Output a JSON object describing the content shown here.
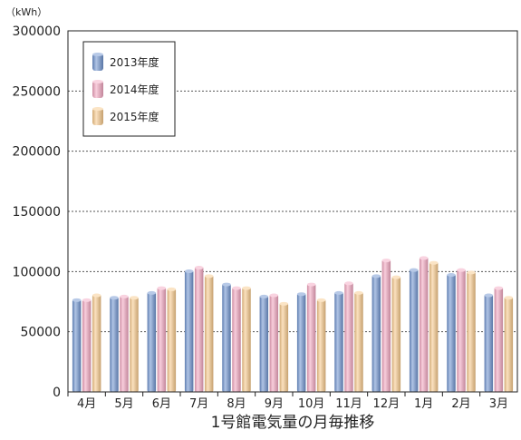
{
  "chart_data": {
    "type": "bar",
    "unit_label": "（kWh）",
    "xlabel": "1号館電気量の月毎推移",
    "ylabel": "",
    "ylim": [
      0,
      300000
    ],
    "yticks": [
      0,
      50000,
      100000,
      150000,
      200000,
      250000,
      300000
    ],
    "grid": true,
    "legend_position": "top-left",
    "categories": [
      "4月",
      "5月",
      "6月",
      "7月",
      "8月",
      "9月",
      "10月",
      "11月",
      "12月",
      "1月",
      "2月",
      "3月"
    ],
    "series": [
      {
        "name": "2013年度",
        "color": "#6f93cf",
        "values": [
          77000,
          79000,
          83000,
          101000,
          90000,
          80000,
          82000,
          83000,
          97000,
          102000,
          98000,
          81000
        ]
      },
      {
        "name": "2014年度",
        "color": "#f2a6c0",
        "values": [
          77000,
          80000,
          87000,
          104000,
          87000,
          81000,
          90000,
          91000,
          110000,
          112000,
          102000,
          87000
        ]
      },
      {
        "name": "2015年度",
        "color": "#f7c98b",
        "values": [
          81000,
          79000,
          86000,
          97000,
          87000,
          74000,
          77000,
          83000,
          96000,
          108000,
          100000,
          79000
        ]
      }
    ]
  }
}
